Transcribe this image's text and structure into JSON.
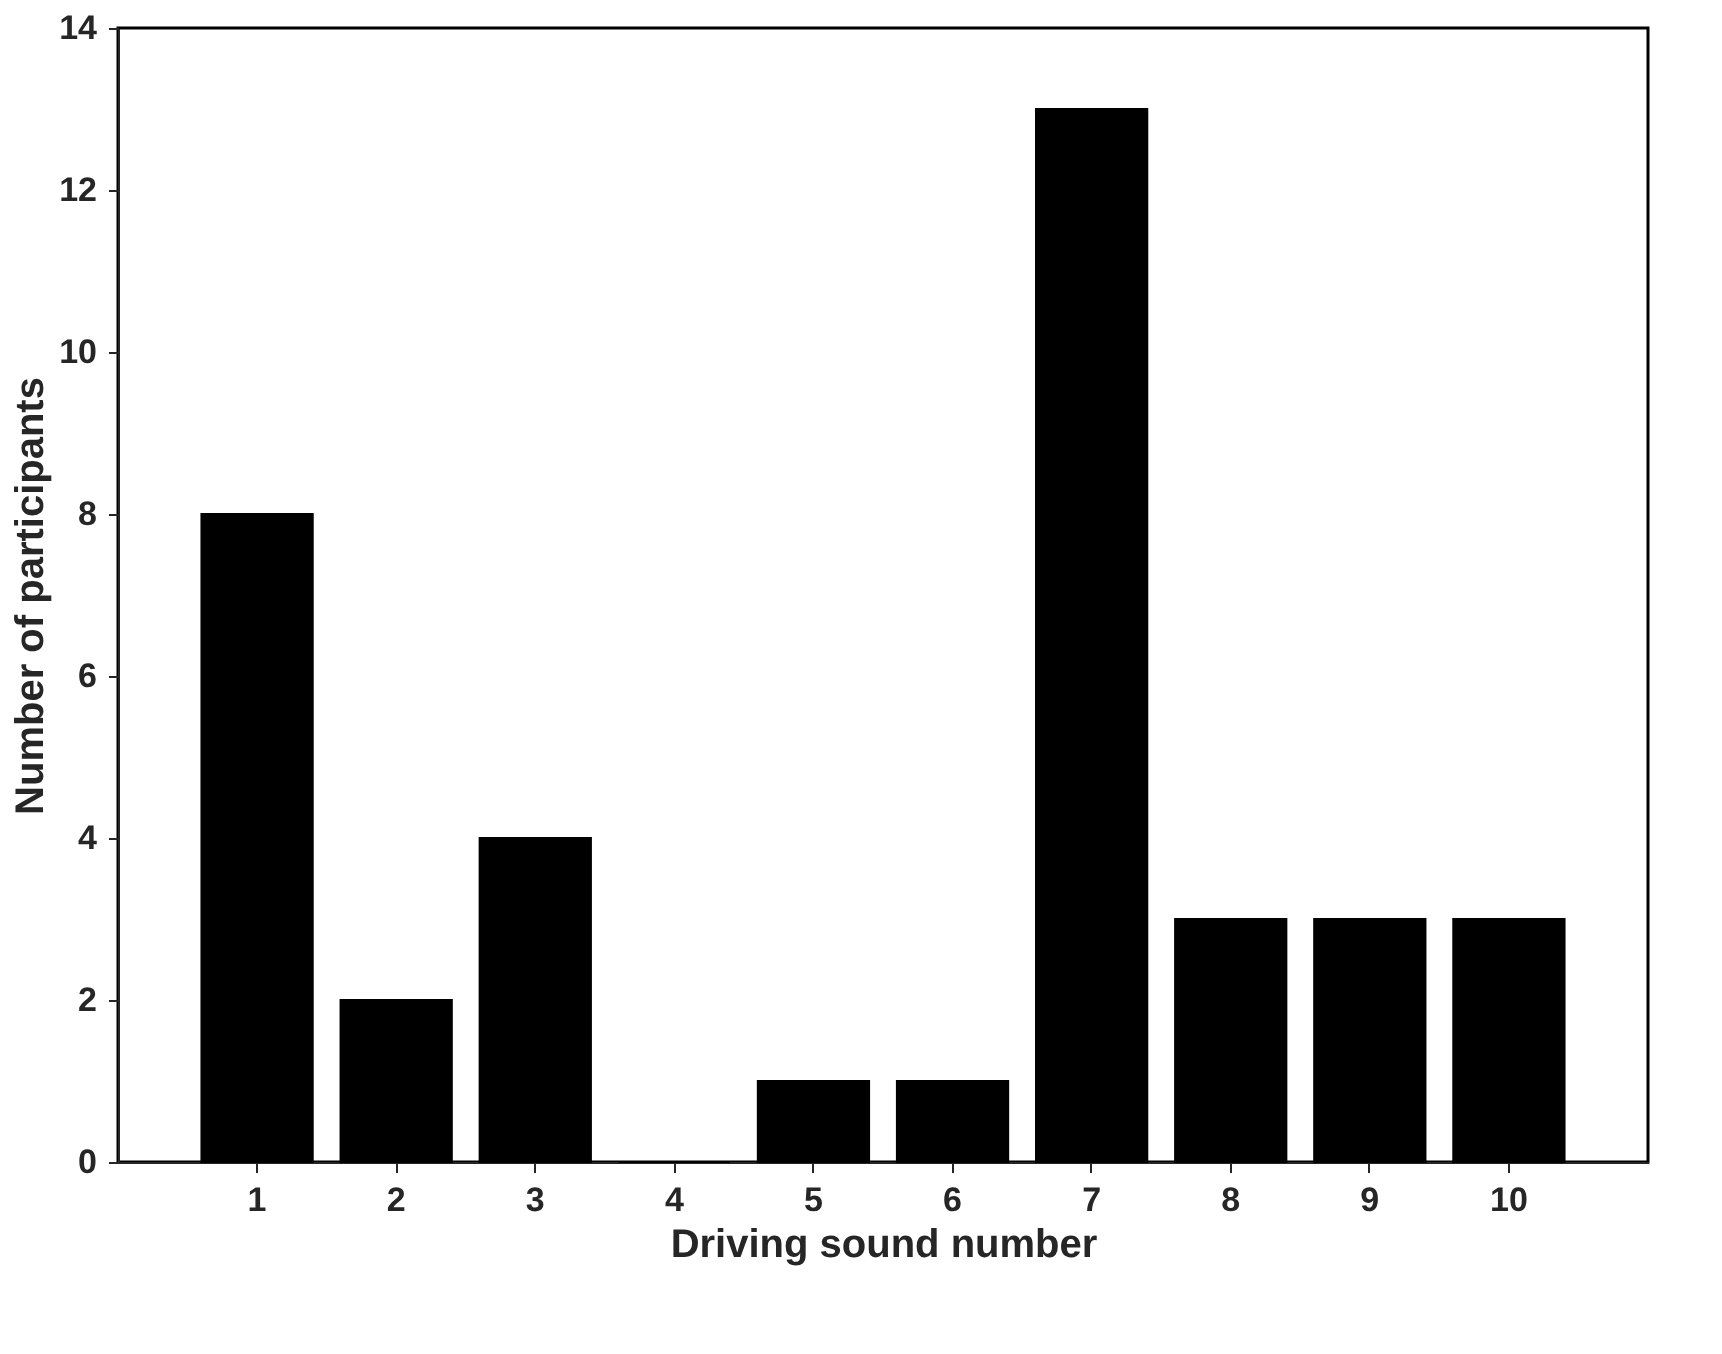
{
  "chart_data": {
    "type": "bar",
    "xlabel": "Driving sound number",
    "ylabel": "Number of participants",
    "categories": [
      "1",
      "2",
      "3",
      "4",
      "5",
      "6",
      "7",
      "8",
      "9",
      "10"
    ],
    "values": [
      8,
      2,
      4,
      0,
      1,
      1,
      13,
      3,
      3,
      3
    ],
    "color": "#000000",
    "ylim": [
      0,
      14
    ],
    "yticks": [
      0,
      2,
      4,
      6,
      8,
      10,
      12,
      14
    ],
    "grid": false
  }
}
